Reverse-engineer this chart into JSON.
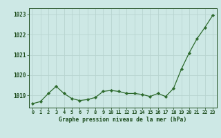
{
  "x": [
    0,
    1,
    2,
    3,
    4,
    5,
    6,
    7,
    8,
    9,
    10,
    11,
    12,
    13,
    14,
    15,
    16,
    17,
    18,
    19,
    20,
    21,
    22,
    23
  ],
  "y": [
    1018.6,
    1018.7,
    1019.1,
    1019.45,
    1019.1,
    1018.85,
    1018.75,
    1018.8,
    1018.9,
    1019.2,
    1019.25,
    1019.2,
    1019.1,
    1019.1,
    1019.05,
    1018.95,
    1019.1,
    1018.95,
    1019.35,
    1020.3,
    1021.1,
    1021.8,
    1022.35,
    1022.95
  ],
  "line_color": "#2d6a2d",
  "marker": "D",
  "marker_size": 2.2,
  "background_color": "#cde8e5",
  "grid_color": "#b8d4d0",
  "axis_label_color": "#1a4a1a",
  "tick_label_color": "#1a4a1a",
  "title": "Graphe pression niveau de la mer (hPa)",
  "ylim": [
    1018.4,
    1023.3
  ],
  "yticks": [
    1019,
    1020,
    1021,
    1022,
    1023
  ],
  "xlim": [
    -0.5,
    23.5
  ],
  "xticks": [
    0,
    1,
    2,
    3,
    4,
    5,
    6,
    7,
    8,
    9,
    10,
    11,
    12,
    13,
    14,
    15,
    16,
    17,
    18,
    19,
    20,
    21,
    22,
    23
  ]
}
